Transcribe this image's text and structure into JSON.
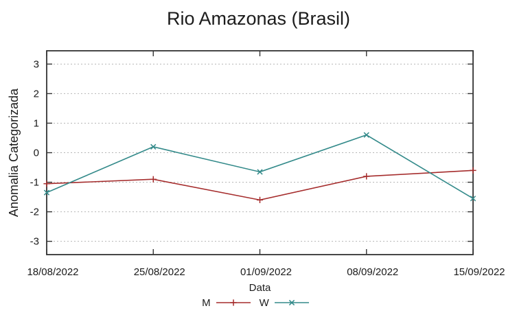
{
  "window": {
    "background": "#ffffff"
  },
  "chart_data": {
    "type": "line",
    "title": "Rio Amazonas (Brasil)",
    "xlabel": "Data",
    "ylabel": "Anomalia Categorizada",
    "categories": [
      "18/08/2022",
      "25/08/2022",
      "01/09/2022",
      "08/09/2022",
      "15/09/2022"
    ],
    "series": [
      {
        "name": "M",
        "color": "#a52c2c",
        "marker": "plus",
        "values": [
          -1.05,
          -0.9,
          -1.6,
          -0.8,
          -0.6
        ]
      },
      {
        "name": "W",
        "color": "#338a8a",
        "marker": "cross",
        "values": [
          -1.35,
          0.2,
          -0.65,
          0.6,
          -1.55
        ]
      }
    ],
    "yticks": [
      -3,
      -2,
      -1,
      0,
      1,
      2,
      3
    ],
    "ylim": [
      -3.45,
      3.45
    ],
    "grid": true,
    "legend_position": "bottom-center",
    "axis_color": "#333333",
    "grid_color": "#b5b5b5",
    "text_color": "#1a1a1a"
  }
}
